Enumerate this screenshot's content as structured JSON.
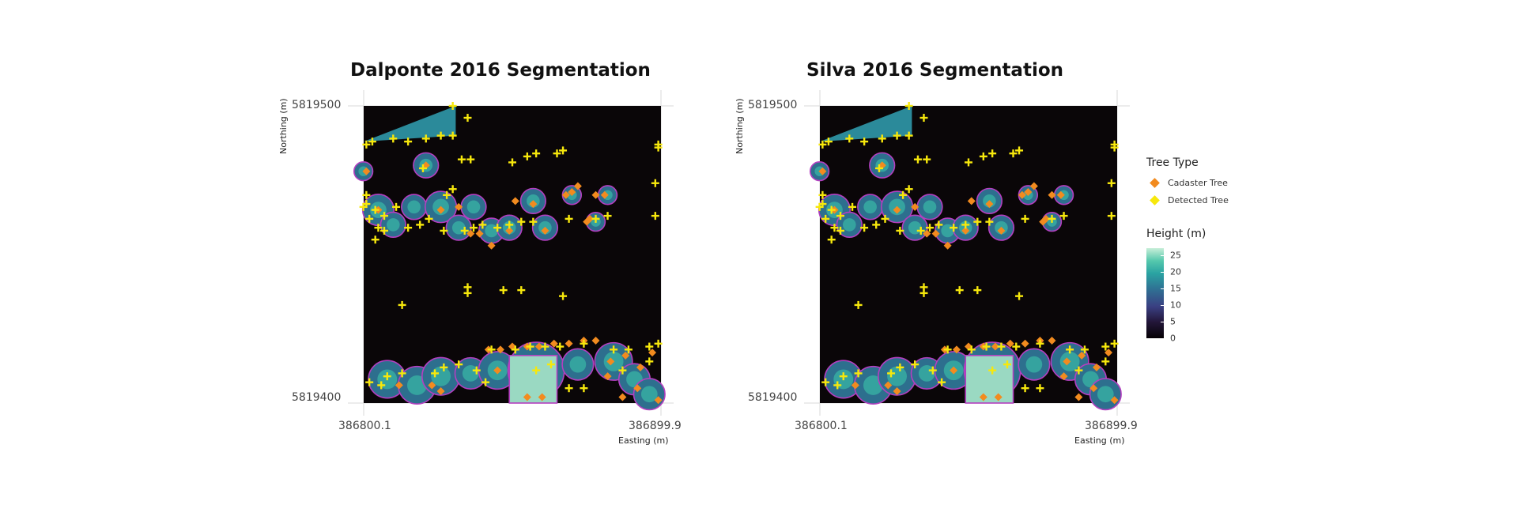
{
  "legend": {
    "tree_type_title": "Tree Type",
    "items": [
      {
        "label": "Cadaster Tree",
        "color": "#f28b1f"
      },
      {
        "label": "Detected Tree",
        "color": "#f7e80c"
      }
    ],
    "height_title": "Height (m)",
    "height_ticks": [
      "25",
      "20",
      "15",
      "10",
      "5",
      "0"
    ],
    "height_range": [
      0,
      27
    ]
  },
  "chart_data": [
    {
      "type": "scatter",
      "title": "Dalponte 2016 Segmentation",
      "xlabel": "Easting (m)",
      "ylabel": "Northing (m)",
      "x_tick_labels": [
        "386800.1",
        "386899.9"
      ],
      "y_tick_labels": [
        "5819500",
        "5819400"
      ],
      "xlim": [
        386800.1,
        386899.9
      ],
      "ylim": [
        5819400,
        5819500
      ],
      "grid": true,
      "legend_placement": "right",
      "series": [
        {
          "name": "Cadaster Tree",
          "color": "#f28b1f",
          "x": [
            386801,
            386805,
            386821,
            386826,
            386832,
            386836,
            386839,
            386843,
            386849,
            386851,
            386857,
            386861,
            386868,
            386870,
            386872,
            386875,
            386876,
            386878,
            386881,
            386842,
            386846,
            386850,
            386855,
            386859,
            386864,
            386869,
            386874,
            386878,
            386883,
            386888,
            386893,
            386897,
            386812,
            386823,
            386826,
            386845,
            386855,
            386860,
            386882,
            386887,
            386892,
            386899
          ],
          "y": [
            5819478,
            5819465,
            5819480,
            5819465,
            5819466,
            5819457,
            5819457,
            5819453,
            5819458,
            5819468,
            5819467,
            5819458,
            5819470,
            5819471,
            5819473,
            5819461,
            5819462,
            5819470,
            5819470,
            5819418,
            5819418,
            5819419,
            5819419,
            5819419,
            5819420,
            5819420,
            5819421,
            5819421,
            5819414,
            5819416,
            5819412,
            5819417,
            5819406,
            5819406,
            5819404,
            5819411,
            5819402,
            5819402,
            5819409,
            5819402,
            5819405,
            5819401
          ]
        },
        {
          "name": "Detected Tree",
          "color": "#f7e80c",
          "x": [
            386801,
            386803,
            386810,
            386815,
            386821,
            386826,
            386830,
            386835,
            386830,
            386820,
            386850,
            386855,
            386858,
            386865,
            386867,
            386833,
            386836,
            386830,
            386828,
            386801,
            386804,
            386807,
            386811,
            386807,
            386815,
            386819,
            386822,
            386827,
            386834,
            386837,
            386840,
            386845,
            386849,
            386853,
            386857,
            386869,
            386878,
            386882,
            386898,
            386899,
            386899,
            386898,
            386800,
            386802,
            386805,
            386801,
            386804,
            386847,
            386853,
            386867,
            386835,
            386835,
            386813,
            386843,
            386851,
            386856,
            386861,
            386866,
            386874,
            386884,
            386889,
            386896,
            386899,
            386802,
            386806,
            386808,
            386813,
            386824,
            386827,
            386832,
            386838,
            386841,
            386858,
            386863,
            386869,
            386874,
            386887,
            386896
          ],
          "y": [
            5819487,
            5819488,
            5819489,
            5819488,
            5819489,
            5819490,
            5819490,
            5819496,
            5819500,
            5819479,
            5819481,
            5819483,
            5819484,
            5819484,
            5819485,
            5819482,
            5819482,
            5819472,
            5819470,
            5819467,
            5819465,
            5819463,
            5819466,
            5819458,
            5819459,
            5819460,
            5819462,
            5819458,
            5819458,
            5819459,
            5819460,
            5819459,
            5819460,
            5819461,
            5819461,
            5819462,
            5819462,
            5819463,
            5819463,
            5819486,
            5819487,
            5819474,
            5819466,
            5819462,
            5819459,
            5819470,
            5819455,
            5819438,
            5819438,
            5819436,
            5819439,
            5819437,
            5819433,
            5819418,
            5819418,
            5819419,
            5819419,
            5819419,
            5819420,
            5819418,
            5819418,
            5819419,
            5819420,
            5819407,
            5819406,
            5819409,
            5819410,
            5819410,
            5819412,
            5819413,
            5819411,
            5819407,
            5819411,
            5819413,
            5819405,
            5819405,
            5819411,
            5819414
          ]
        }
      ]
    },
    {
      "type": "scatter",
      "title": "Silva 2016 Segmentation",
      "xlabel": "Easting (m)",
      "ylabel": "Northing (m)",
      "x_tick_labels": [
        "386800.1",
        "386899.9"
      ],
      "y_tick_labels": [
        "5819500",
        "5819400"
      ],
      "xlim": [
        386800.1,
        386899.9
      ],
      "ylim": [
        5819400,
        5819500
      ],
      "grid": true,
      "legend_placement": "right",
      "series": [
        {
          "name": "Cadaster Tree",
          "color": "#f28b1f",
          "x": [
            386801,
            386805,
            386821,
            386826,
            386832,
            386836,
            386839,
            386843,
            386849,
            386851,
            386857,
            386861,
            386868,
            386870,
            386872,
            386875,
            386876,
            386878,
            386881,
            386842,
            386846,
            386850,
            386855,
            386859,
            386864,
            386869,
            386874,
            386878,
            386883,
            386888,
            386893,
            386897,
            386812,
            386823,
            386826,
            386845,
            386855,
            386860,
            386882,
            386887,
            386892,
            386899
          ],
          "y": [
            5819478,
            5819465,
            5819480,
            5819465,
            5819466,
            5819457,
            5819457,
            5819453,
            5819458,
            5819468,
            5819467,
            5819458,
            5819470,
            5819471,
            5819473,
            5819461,
            5819462,
            5819470,
            5819470,
            5819418,
            5819418,
            5819419,
            5819419,
            5819419,
            5819420,
            5819420,
            5819421,
            5819421,
            5819414,
            5819416,
            5819412,
            5819417,
            5819406,
            5819406,
            5819404,
            5819411,
            5819402,
            5819402,
            5819409,
            5819402,
            5819405,
            5819401
          ]
        },
        {
          "name": "Detected Tree",
          "color": "#f7e80c",
          "x": [
            386801,
            386803,
            386810,
            386815,
            386821,
            386826,
            386830,
            386835,
            386830,
            386820,
            386850,
            386855,
            386858,
            386865,
            386867,
            386833,
            386836,
            386830,
            386828,
            386801,
            386804,
            386807,
            386811,
            386807,
            386815,
            386819,
            386822,
            386827,
            386834,
            386837,
            386840,
            386845,
            386849,
            386853,
            386857,
            386869,
            386878,
            386882,
            386898,
            386899,
            386899,
            386898,
            386800,
            386802,
            386805,
            386801,
            386804,
            386847,
            386853,
            386867,
            386835,
            386835,
            386813,
            386843,
            386851,
            386856,
            386861,
            386866,
            386874,
            386884,
            386889,
            386896,
            386899,
            386802,
            386806,
            386808,
            386813,
            386824,
            386827,
            386832,
            386838,
            386841,
            386858,
            386863,
            386869,
            386874,
            386887,
            386896
          ],
          "y": [
            5819487,
            5819488,
            5819489,
            5819488,
            5819489,
            5819490,
            5819490,
            5819496,
            5819500,
            5819479,
            5819481,
            5819483,
            5819484,
            5819484,
            5819485,
            5819482,
            5819482,
            5819472,
            5819470,
            5819467,
            5819465,
            5819463,
            5819466,
            5819458,
            5819459,
            5819460,
            5819462,
            5819458,
            5819458,
            5819459,
            5819460,
            5819459,
            5819460,
            5819461,
            5819461,
            5819462,
            5819462,
            5819463,
            5819463,
            5819486,
            5819487,
            5819474,
            5819466,
            5819462,
            5819459,
            5819470,
            5819455,
            5819438,
            5819438,
            5819436,
            5819439,
            5819437,
            5819433,
            5819418,
            5819418,
            5819419,
            5819419,
            5819419,
            5819420,
            5819418,
            5819418,
            5819419,
            5819420,
            5819407,
            5819406,
            5819409,
            5819410,
            5819410,
            5819412,
            5819413,
            5819411,
            5819407,
            5819411,
            5819413,
            5819405,
            5819405,
            5819411,
            5819414
          ]
        }
      ]
    }
  ]
}
